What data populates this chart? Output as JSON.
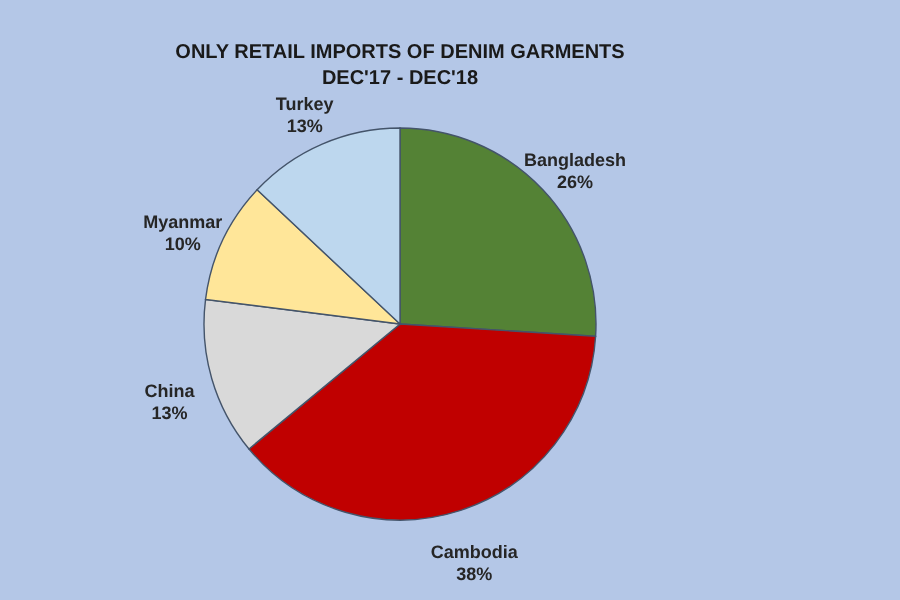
{
  "chart_data": {
    "type": "pie",
    "title": "ONLY RETAIL IMPORTS OF DENIM GARMENTS",
    "subtitle": "DEC'17 - DEC'18",
    "categories": [
      "Bangladesh",
      "Cambodia",
      "China",
      "Myanmar",
      "Turkey"
    ],
    "values": [
      26,
      38,
      13,
      10,
      13
    ],
    "value_labels": [
      "26%",
      "38%",
      "13%",
      "10%",
      "13%"
    ],
    "colors": [
      "#548235",
      "#c00000",
      "#d9d9d9",
      "#ffe699",
      "#bdd7ee"
    ],
    "legend": false
  }
}
